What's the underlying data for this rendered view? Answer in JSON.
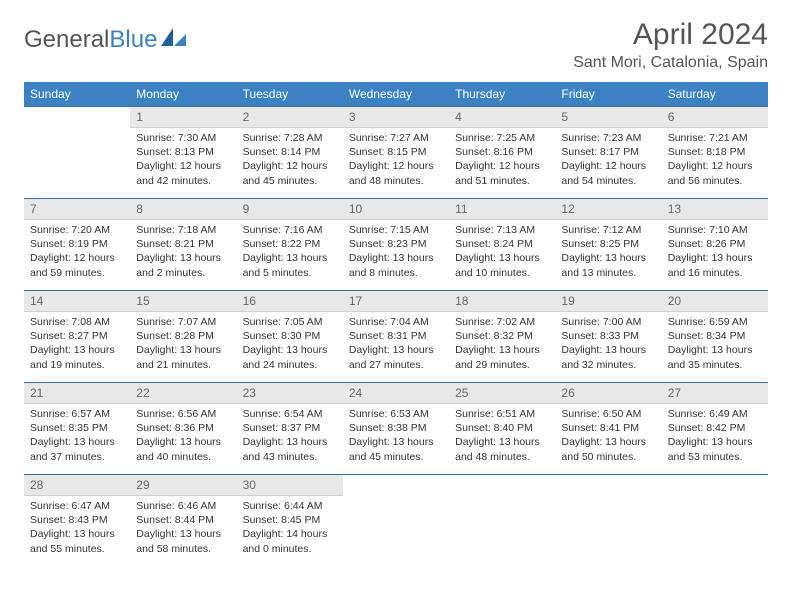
{
  "logo": {
    "word1": "General",
    "word2": "Blue"
  },
  "title": "April 2024",
  "location": "Sant Mori, Catalonia, Spain",
  "colors": {
    "header_bg": "#3b82c4",
    "header_fg": "#ffffff",
    "daynum_bg": "#e8e8e8",
    "border": "#3b6fa0",
    "text": "#333333"
  },
  "day_headers": [
    "Sunday",
    "Monday",
    "Tuesday",
    "Wednesday",
    "Thursday",
    "Friday",
    "Saturday"
  ],
  "weeks": [
    [
      null,
      {
        "n": "1",
        "sr": "7:30 AM",
        "ss": "8:13 PM",
        "dl": "12 hours and 42 minutes."
      },
      {
        "n": "2",
        "sr": "7:28 AM",
        "ss": "8:14 PM",
        "dl": "12 hours and 45 minutes."
      },
      {
        "n": "3",
        "sr": "7:27 AM",
        "ss": "8:15 PM",
        "dl": "12 hours and 48 minutes."
      },
      {
        "n": "4",
        "sr": "7:25 AM",
        "ss": "8:16 PM",
        "dl": "12 hours and 51 minutes."
      },
      {
        "n": "5",
        "sr": "7:23 AM",
        "ss": "8:17 PM",
        "dl": "12 hours and 54 minutes."
      },
      {
        "n": "6",
        "sr": "7:21 AM",
        "ss": "8:18 PM",
        "dl": "12 hours and 56 minutes."
      }
    ],
    [
      {
        "n": "7",
        "sr": "7:20 AM",
        "ss": "8:19 PM",
        "dl": "12 hours and 59 minutes."
      },
      {
        "n": "8",
        "sr": "7:18 AM",
        "ss": "8:21 PM",
        "dl": "13 hours and 2 minutes."
      },
      {
        "n": "9",
        "sr": "7:16 AM",
        "ss": "8:22 PM",
        "dl": "13 hours and 5 minutes."
      },
      {
        "n": "10",
        "sr": "7:15 AM",
        "ss": "8:23 PM",
        "dl": "13 hours and 8 minutes."
      },
      {
        "n": "11",
        "sr": "7:13 AM",
        "ss": "8:24 PM",
        "dl": "13 hours and 10 minutes."
      },
      {
        "n": "12",
        "sr": "7:12 AM",
        "ss": "8:25 PM",
        "dl": "13 hours and 13 minutes."
      },
      {
        "n": "13",
        "sr": "7:10 AM",
        "ss": "8:26 PM",
        "dl": "13 hours and 16 minutes."
      }
    ],
    [
      {
        "n": "14",
        "sr": "7:08 AM",
        "ss": "8:27 PM",
        "dl": "13 hours and 19 minutes."
      },
      {
        "n": "15",
        "sr": "7:07 AM",
        "ss": "8:28 PM",
        "dl": "13 hours and 21 minutes."
      },
      {
        "n": "16",
        "sr": "7:05 AM",
        "ss": "8:30 PM",
        "dl": "13 hours and 24 minutes."
      },
      {
        "n": "17",
        "sr": "7:04 AM",
        "ss": "8:31 PM",
        "dl": "13 hours and 27 minutes."
      },
      {
        "n": "18",
        "sr": "7:02 AM",
        "ss": "8:32 PM",
        "dl": "13 hours and 29 minutes."
      },
      {
        "n": "19",
        "sr": "7:00 AM",
        "ss": "8:33 PM",
        "dl": "13 hours and 32 minutes."
      },
      {
        "n": "20",
        "sr": "6:59 AM",
        "ss": "8:34 PM",
        "dl": "13 hours and 35 minutes."
      }
    ],
    [
      {
        "n": "21",
        "sr": "6:57 AM",
        "ss": "8:35 PM",
        "dl": "13 hours and 37 minutes."
      },
      {
        "n": "22",
        "sr": "6:56 AM",
        "ss": "8:36 PM",
        "dl": "13 hours and 40 minutes."
      },
      {
        "n": "23",
        "sr": "6:54 AM",
        "ss": "8:37 PM",
        "dl": "13 hours and 43 minutes."
      },
      {
        "n": "24",
        "sr": "6:53 AM",
        "ss": "8:38 PM",
        "dl": "13 hours and 45 minutes."
      },
      {
        "n": "25",
        "sr": "6:51 AM",
        "ss": "8:40 PM",
        "dl": "13 hours and 48 minutes."
      },
      {
        "n": "26",
        "sr": "6:50 AM",
        "ss": "8:41 PM",
        "dl": "13 hours and 50 minutes."
      },
      {
        "n": "27",
        "sr": "6:49 AM",
        "ss": "8:42 PM",
        "dl": "13 hours and 53 minutes."
      }
    ],
    [
      {
        "n": "28",
        "sr": "6:47 AM",
        "ss": "8:43 PM",
        "dl": "13 hours and 55 minutes."
      },
      {
        "n": "29",
        "sr": "6:46 AM",
        "ss": "8:44 PM",
        "dl": "13 hours and 58 minutes."
      },
      {
        "n": "30",
        "sr": "6:44 AM",
        "ss": "8:45 PM",
        "dl": "14 hours and 0 minutes."
      },
      null,
      null,
      null,
      null
    ]
  ],
  "labels": {
    "sunrise": "Sunrise:",
    "sunset": "Sunset:",
    "daylight": "Daylight:"
  }
}
